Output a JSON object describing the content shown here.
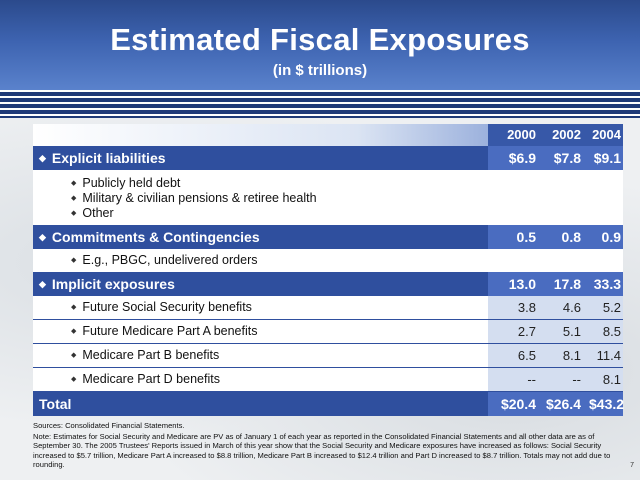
{
  "title": "Estimated Fiscal Exposures",
  "subtitle": "(in $ trillions)",
  "table": {
    "years": [
      "2000",
      "2002",
      "2004"
    ],
    "explicit": {
      "label": "Explicit liabilities",
      "values": [
        "$6.9",
        "$7.8",
        "$9.1"
      ],
      "items": [
        "Publicly held debt",
        "Military & civilian pensions & retiree health",
        "Other"
      ]
    },
    "commitments": {
      "label": "Commitments & Contingencies",
      "values": [
        "0.5",
        "0.8",
        "0.9"
      ],
      "items": [
        "E.g., PBGC, undelivered orders"
      ]
    },
    "implicit": {
      "label": "Implicit exposures",
      "values": [
        "13.0",
        "17.8",
        "33.3"
      ],
      "rows": [
        {
          "label": "Future Social Security benefits",
          "values": [
            "3.8",
            "4.6",
            "5.2"
          ]
        },
        {
          "label": "Future Medicare Part A benefits",
          "values": [
            "2.7",
            "5.1",
            "8.5"
          ]
        },
        {
          "label": "Medicare Part B benefits",
          "values": [
            "6.5",
            "8.1",
            "11.4"
          ]
        },
        {
          "label": "Medicare Part D benefits",
          "values": [
            "--",
            "--",
            "8.1"
          ]
        }
      ]
    },
    "total": {
      "label": "Total",
      "values": [
        "$20.4",
        "$26.4",
        "$43.2"
      ]
    }
  },
  "notes": {
    "sources": "Sources: Consolidated Financial Statements.",
    "note": "Note: Estimates for Social Security and Medicare are PV as of January 1 of each year as reported in the Consolidated Financial Statements and all other data are as of September 30. The 2005 Trustees' Reports issued in March of this year show that the Social Security and Medicare exposures have increased as follows: Social Security increased to $5.7 trillion, Medicare Part A increased to $8.8 trillion, Medicare Part B increased to $12.4 trillion and Part D increased to $8.7 trillion. Totals may not add due to rounding."
  },
  "page_number": "7",
  "colors": {
    "header_blue": "#3d63b0",
    "section_blue": "#2f4f9e",
    "value_cell_blue": "#d4def0"
  }
}
